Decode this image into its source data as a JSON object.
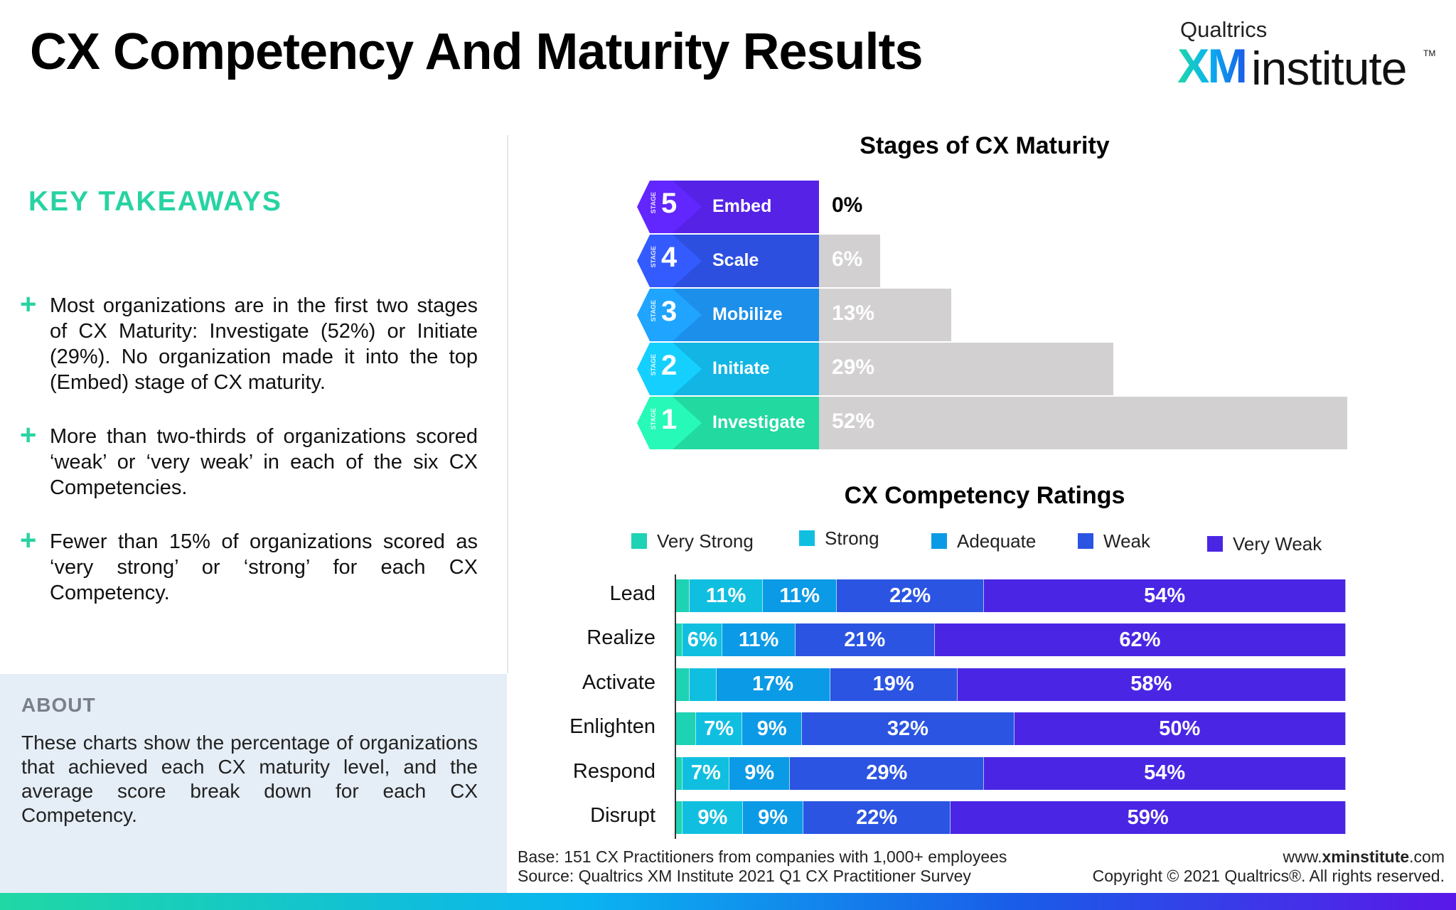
{
  "header": {
    "title": "CX Competency And Maturity Results",
    "logo_small": "Qualtrics",
    "logo_xm": "XM",
    "logo_institute": "institute",
    "logo_tm": "TM"
  },
  "takeaways": {
    "heading": "KEY TAKEAWAYS",
    "items": [
      "Most organizations are in the first two stages of CX Maturity: Investigate (52%) or Initiate (29%). No organization made it into the top (Embed) stage of CX maturity.",
      "More than two-thirds of organizations scored ‘weak’ or ‘very weak’ in each of the six CX Competencies.",
      "Fewer than 15% of organizations scored as ‘very strong’ or ‘strong’ for each CX Competency."
    ]
  },
  "about": {
    "heading": "ABOUT",
    "text": "These charts show the percentage of organizations that achieved each CX maturity level, and the average score break down for each CX Competency."
  },
  "chart_data": [
    {
      "type": "bar",
      "title": "Stages of CX Maturity",
      "stage_word": "STAGE",
      "categories": [
        "Embed",
        "Scale",
        "Mobilize",
        "Initiate",
        "Investigate"
      ],
      "stage_numbers": [
        "5",
        "4",
        "3",
        "2",
        "1"
      ],
      "values": [
        0,
        6,
        13,
        29,
        52
      ],
      "value_labels": [
        "0%",
        "6%",
        "13%",
        "29%",
        "52%"
      ],
      "colors": [
        "#5522e6",
        "#2c4fe0",
        "#1b8fea",
        "#12b5e4",
        "#22d9a0"
      ],
      "xlim": [
        0,
        52
      ]
    },
    {
      "type": "bar",
      "stacked": true,
      "orientation": "horizontal",
      "title": "CX Competency Ratings",
      "categories": [
        "Lead",
        "Realize",
        "Activate",
        "Enlighten",
        "Respond",
        "Disrupt"
      ],
      "series": [
        {
          "name": "Very Strong",
          "color": "#1ed2b4",
          "values": [
            2,
            1,
            2,
            3,
            1,
            1
          ],
          "labels": [
            "",
            "",
            "",
            "",
            "",
            ""
          ]
        },
        {
          "name": "Strong",
          "color": "#10bfe0",
          "values": [
            11,
            6,
            4,
            7,
            7,
            9
          ],
          "labels": [
            "11%",
            "6%",
            "",
            "7%",
            "7%",
            "9%"
          ]
        },
        {
          "name": "Adequate",
          "color": "#0b9ae6",
          "values": [
            11,
            11,
            17,
            9,
            9,
            9
          ],
          "labels": [
            "11%",
            "11%",
            "17%",
            "9%",
            "9%",
            "9%"
          ]
        },
        {
          "name": "Weak",
          "color": "#2b54e2",
          "values": [
            22,
            21,
            19,
            32,
            29,
            22
          ],
          "labels": [
            "22%",
            "21%",
            "19%",
            "32%",
            "29%",
            "22%"
          ]
        },
        {
          "name": "Very Weak",
          "color": "#4a26e4",
          "values": [
            54,
            62,
            58,
            50,
            54,
            59
          ],
          "labels": [
            "54%",
            "62%",
            "58%",
            "50%",
            "54%",
            "59%"
          ]
        }
      ],
      "xlim": [
        0,
        100
      ]
    }
  ],
  "footer": {
    "base": "Base: 151 CX Practitioners from companies with 1,000+ employees",
    "source": "Source: Qualtrics XM Institute 2021 Q1 CX Practitioner Survey",
    "url_prefix": "www.",
    "url_bold": "xminstitute",
    "url_suffix": ".com",
    "copyright": "Copyright © 2021 Qualtrics®. All rights reserved."
  }
}
